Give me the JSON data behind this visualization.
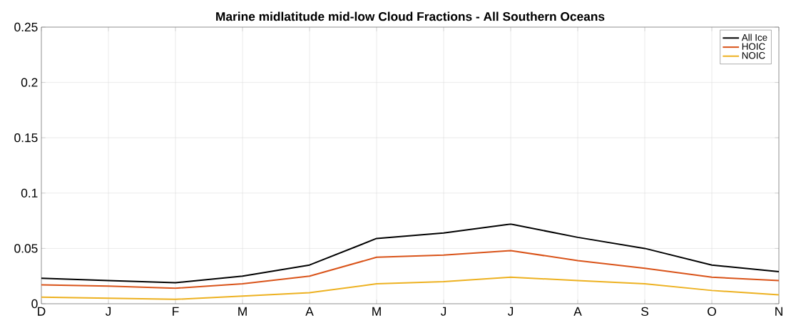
{
  "chart_data": {
    "type": "line",
    "title": "Marine midlatitude mid-low Cloud Fractions - All Southern Oceans",
    "categories": [
      "D",
      "J",
      "F",
      "M",
      "A",
      "M",
      "J",
      "J",
      "A",
      "S",
      "O",
      "N"
    ],
    "series": [
      {
        "name": "All Ice",
        "color": "#000000",
        "values": [
          0.023,
          0.021,
          0.019,
          0.025,
          0.035,
          0.059,
          0.064,
          0.072,
          0.06,
          0.05,
          0.035,
          0.029
        ]
      },
      {
        "name": "HOIC",
        "color": "#d95319",
        "values": [
          0.017,
          0.016,
          0.014,
          0.018,
          0.025,
          0.042,
          0.044,
          0.048,
          0.039,
          0.032,
          0.024,
          0.021
        ]
      },
      {
        "name": "NOIC",
        "color": "#edb120",
        "values": [
          0.006,
          0.005,
          0.004,
          0.007,
          0.01,
          0.018,
          0.02,
          0.024,
          0.021,
          0.018,
          0.012,
          0.008
        ]
      }
    ],
    "ylim": [
      0,
      0.25
    ],
    "yticks": [
      0,
      0.05,
      0.1,
      0.15,
      0.2,
      0.25
    ],
    "grid": true,
    "legend": "top right",
    "marker": "none",
    "line_style": "solid"
  }
}
